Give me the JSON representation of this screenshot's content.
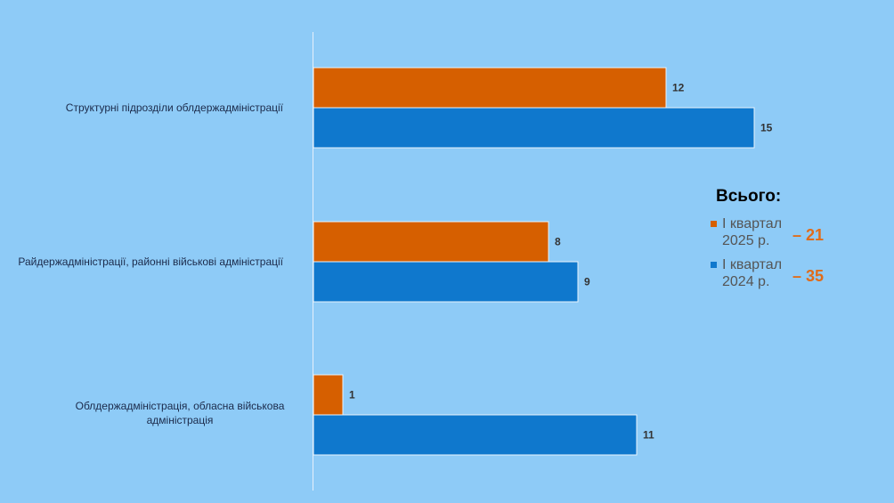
{
  "chart_data": {
    "type": "bar",
    "orientation": "horizontal",
    "categories": [
      "Структурні підрозділи облдержадміністрації",
      "Райдержадміністрації, районні військові адміністрації",
      "Облдержадміністрація, обласна військова адміністрація"
    ],
    "series": [
      {
        "name": "І квартал 2025 р.",
        "color": "#d65f00",
        "values": [
          12,
          8,
          1
        ]
      },
      {
        "name": "І квартал 2024 р.",
        "color": "#0f78cd",
        "values": [
          15,
          9,
          11
        ]
      }
    ],
    "xlim": [
      0,
      20
    ],
    "grid": false,
    "legend_position": "right"
  },
  "legend": {
    "title": "Всього:",
    "items": [
      {
        "line1": "І квартал",
        "line2": "2025 р.",
        "total": "– 21",
        "color": "#d65f00"
      },
      {
        "line1": "І квартал",
        "line2": "2024 р.",
        "total": "– 35",
        "color": "#0f78cd"
      }
    ]
  }
}
